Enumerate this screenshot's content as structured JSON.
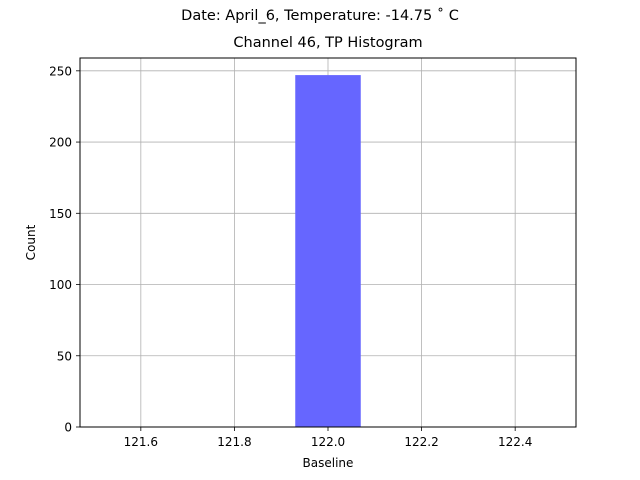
{
  "suptitle": "Date: April_6, Temperature: -14.75 $^\\circ$ C",
  "suptitle_display": "Date: April_6, Temperature: -14.75 ˚ C",
  "chart_data": {
    "type": "bar",
    "title": "Channel 46, TP Histogram",
    "xlabel": "Baseline",
    "ylabel": "Count",
    "bins": [
      {
        "x_start": 121.93,
        "x_end": 122.07,
        "count": 247
      }
    ],
    "xlim": [
      121.47,
      122.53
    ],
    "ylim": [
      0,
      259
    ],
    "xticks": [
      121.6,
      121.8,
      122.0,
      122.2,
      122.4
    ],
    "xtick_labels": [
      "121.6",
      "121.8",
      "122.0",
      "122.2",
      "122.4"
    ],
    "yticks": [
      0,
      50,
      100,
      150,
      200,
      250
    ],
    "ytick_labels": [
      "0",
      "50",
      "100",
      "150",
      "200",
      "250"
    ],
    "grid": true,
    "bar_color": "#6666ff"
  }
}
